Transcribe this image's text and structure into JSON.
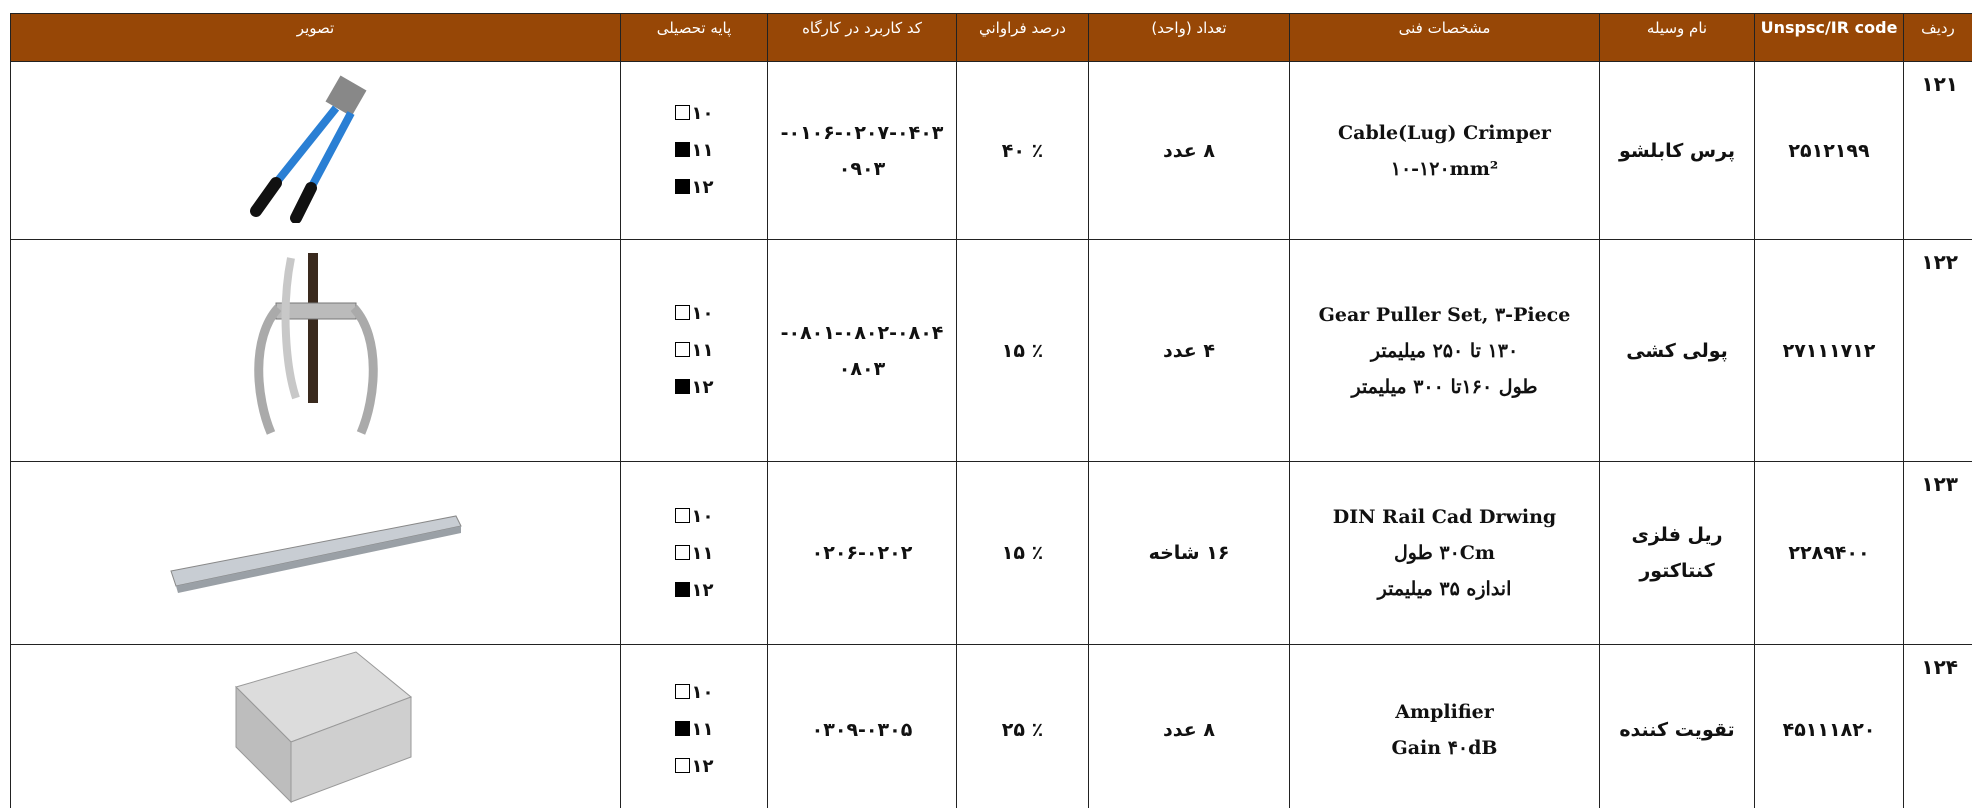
{
  "table": {
    "headers": [
      "ردیف",
      "Unspsc/IR code",
      "نام وسیله",
      "مشخصات فنی",
      "تعداد (واحد)",
      "درصد فراواني",
      "کد کاربرد در کارگاه",
      "پایه تحصیلی",
      "تصویر"
    ],
    "rows": [
      {
        "row": "۱۲۱",
        "code": "۲۵۱۲۱۹۹",
        "name": [
          "پرس کابلشو"
        ],
        "spec": [
          "Cable(Lug) Crimper",
          "۱۰-۱۲۰mm²"
        ],
        "quantity": "۸ عدد",
        "percent": "٪ ۴۰",
        "usage": [
          "۰۱۰۶-۰۲۰۷-۰۴۰۳-",
          "۰۹۰۳"
        ],
        "grades": [
          {
            "label": "۱۰",
            "checked": false
          },
          {
            "label": "۱۱",
            "checked": true
          },
          {
            "label": "۱۲",
            "checked": true
          }
        ]
      },
      {
        "row": "۱۲۲",
        "code": "۲۷۱۱۱۷۱۲",
        "name": [
          "پولی کشی"
        ],
        "spec": [
          "Gear Puller Set, ۳-Piece",
          "۱۳۰ تا ۲۵۰ میلیمتر",
          "طول ۱۶۰تا ۳۰۰ میلیمتر"
        ],
        "quantity": "۴ عدد",
        "percent": "٪ ۱۵",
        "usage": [
          "۰۸۰۱-۰۸۰۲-۰۸۰۴-",
          "۰۸۰۳"
        ],
        "grades": [
          {
            "label": "۱۰",
            "checked": false
          },
          {
            "label": "۱۱",
            "checked": false
          },
          {
            "label": "۱۲",
            "checked": true
          }
        ]
      },
      {
        "row": "۱۲۳",
        "code": "۲۲۸۹۴۰۰",
        "name": [
          "ریل فلزی",
          "کنتاکتور"
        ],
        "spec": [
          "DIN Rail Cad Drwing",
          "۳۰Cm طول",
          "اندازه ۳۵ میلیمتر"
        ],
        "quantity": "۱۶ شاخه",
        "percent": "٪ ۱۵",
        "usage": [
          "۰۲۰۶-۰۲۰۲"
        ],
        "grades": [
          {
            "label": "۱۰",
            "checked": false
          },
          {
            "label": "۱۱",
            "checked": false
          },
          {
            "label": "۱۲",
            "checked": true
          }
        ]
      },
      {
        "row": "۱۲۴",
        "code": "۴۵۱۱۱۸۲۰",
        "name": [
          "تقویت کننده"
        ],
        "spec": [
          "Amplifier",
          "Gain ۴۰dB"
        ],
        "quantity": "۸ عدد",
        "percent": "٪ ۲۵",
        "usage": [
          "۰۳۰۹-۰۳۰۵"
        ],
        "grades": [
          {
            "label": "۱۰",
            "checked": false
          },
          {
            "label": "۱۱",
            "checked": true
          },
          {
            "label": "۱۲",
            "checked": false
          }
        ]
      }
    ]
  }
}
